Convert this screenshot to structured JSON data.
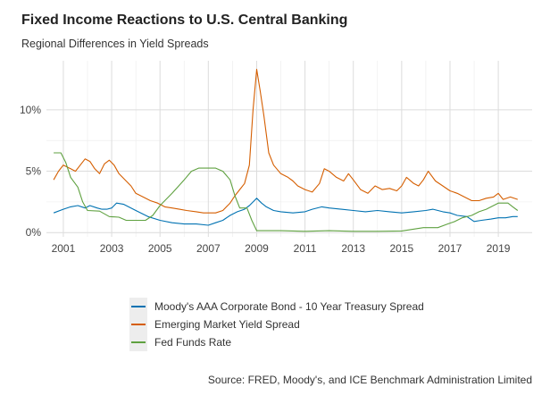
{
  "chart_data": {
    "type": "line",
    "title": "Fixed Income Reactions to U.S. Central Banking",
    "subtitle": "Regional Differences in Yield Spreads",
    "caption": "Source: FRED, Moody's, and ICE Benchmark Administration Limited",
    "xlabel": "",
    "ylabel": "",
    "xlim": [
      2000.3,
      2020.4
    ],
    "ylim": [
      -0.35,
      14.0
    ],
    "x_ticks": [
      2001,
      2003,
      2005,
      2007,
      2009,
      2011,
      2013,
      2015,
      2017,
      2019
    ],
    "y_ticks": [
      0,
      5,
      10
    ],
    "y_tick_labels": [
      "0%",
      "5%",
      "10%"
    ],
    "grid": true,
    "legend_position": "bottom",
    "series": [
      {
        "name": "Moody's AAA Corporate Bond - 10 Year Treasury Spread",
        "color": "#0072B2",
        "points": [
          [
            2000.6,
            1.6
          ],
          [
            2001.0,
            1.9
          ],
          [
            2001.3,
            2.1
          ],
          [
            2001.6,
            2.2
          ],
          [
            2001.9,
            2.0
          ],
          [
            2002.1,
            2.2
          ],
          [
            2002.4,
            2.0
          ],
          [
            2002.6,
            1.9
          ],
          [
            2002.8,
            1.9
          ],
          [
            2003.0,
            2.0
          ],
          [
            2003.2,
            2.4
          ],
          [
            2003.5,
            2.3
          ],
          [
            2003.8,
            2.0
          ],
          [
            2004.0,
            1.8
          ],
          [
            2004.5,
            1.3
          ],
          [
            2005.0,
            1.0
          ],
          [
            2005.5,
            0.8
          ],
          [
            2006.0,
            0.7
          ],
          [
            2006.5,
            0.7
          ],
          [
            2007.0,
            0.6
          ],
          [
            2007.3,
            0.8
          ],
          [
            2007.6,
            1.0
          ],
          [
            2007.9,
            1.4
          ],
          [
            2008.2,
            1.7
          ],
          [
            2008.5,
            1.9
          ],
          [
            2008.7,
            2.2
          ],
          [
            2008.9,
            2.6
          ],
          [
            2009.0,
            2.8
          ],
          [
            2009.2,
            2.4
          ],
          [
            2009.4,
            2.1
          ],
          [
            2009.7,
            1.8
          ],
          [
            2010.0,
            1.7
          ],
          [
            2010.5,
            1.6
          ],
          [
            2011.0,
            1.7
          ],
          [
            2011.3,
            1.9
          ],
          [
            2011.7,
            2.1
          ],
          [
            2012.0,
            2.0
          ],
          [
            2012.5,
            1.9
          ],
          [
            2013.0,
            1.8
          ],
          [
            2013.5,
            1.7
          ],
          [
            2014.0,
            1.8
          ],
          [
            2014.5,
            1.7
          ],
          [
            2015.0,
            1.6
          ],
          [
            2015.5,
            1.7
          ],
          [
            2016.0,
            1.8
          ],
          [
            2016.3,
            1.9
          ],
          [
            2016.7,
            1.7
          ],
          [
            2017.0,
            1.6
          ],
          [
            2017.3,
            1.4
          ],
          [
            2017.7,
            1.3
          ],
          [
            2018.0,
            0.9
          ],
          [
            2018.3,
            1.0
          ],
          [
            2018.7,
            1.1
          ],
          [
            2019.0,
            1.2
          ],
          [
            2019.3,
            1.2
          ],
          [
            2019.6,
            1.3
          ],
          [
            2019.8,
            1.3
          ]
        ]
      },
      {
        "name": "Emerging Market Yield Spread",
        "color": "#D55E00",
        "points": [
          [
            2000.6,
            4.3
          ],
          [
            2000.8,
            5.0
          ],
          [
            2001.0,
            5.5
          ],
          [
            2001.3,
            5.2
          ],
          [
            2001.5,
            5.0
          ],
          [
            2001.7,
            5.5
          ],
          [
            2001.9,
            6.0
          ],
          [
            2002.1,
            5.8
          ],
          [
            2002.3,
            5.2
          ],
          [
            2002.5,
            4.8
          ],
          [
            2002.7,
            5.6
          ],
          [
            2002.9,
            5.9
          ],
          [
            2003.1,
            5.5
          ],
          [
            2003.3,
            4.8
          ],
          [
            2003.6,
            4.2
          ],
          [
            2003.8,
            3.8
          ],
          [
            2004.0,
            3.2
          ],
          [
            2004.3,
            2.9
          ],
          [
            2004.6,
            2.6
          ],
          [
            2004.9,
            2.4
          ],
          [
            2005.2,
            2.1
          ],
          [
            2005.5,
            2.0
          ],
          [
            2005.8,
            1.9
          ],
          [
            2006.1,
            1.8
          ],
          [
            2006.5,
            1.7
          ],
          [
            2006.8,
            1.6
          ],
          [
            2007.0,
            1.6
          ],
          [
            2007.3,
            1.6
          ],
          [
            2007.6,
            1.8
          ],
          [
            2007.9,
            2.4
          ],
          [
            2008.1,
            3.0
          ],
          [
            2008.3,
            3.5
          ],
          [
            2008.5,
            4.0
          ],
          [
            2008.7,
            5.5
          ],
          [
            2008.85,
            10.0
          ],
          [
            2009.0,
            13.3
          ],
          [
            2009.15,
            11.5
          ],
          [
            2009.3,
            9.5
          ],
          [
            2009.5,
            6.5
          ],
          [
            2009.7,
            5.5
          ],
          [
            2010.0,
            4.8
          ],
          [
            2010.3,
            4.5
          ],
          [
            2010.5,
            4.2
          ],
          [
            2010.7,
            3.8
          ],
          [
            2011.0,
            3.5
          ],
          [
            2011.3,
            3.3
          ],
          [
            2011.6,
            4.0
          ],
          [
            2011.8,
            5.2
          ],
          [
            2012.0,
            5.0
          ],
          [
            2012.3,
            4.5
          ],
          [
            2012.6,
            4.2
          ],
          [
            2012.8,
            4.8
          ],
          [
            2013.0,
            4.3
          ],
          [
            2013.3,
            3.5
          ],
          [
            2013.6,
            3.2
          ],
          [
            2013.9,
            3.8
          ],
          [
            2014.2,
            3.5
          ],
          [
            2014.5,
            3.6
          ],
          [
            2014.8,
            3.4
          ],
          [
            2015.0,
            3.8
          ],
          [
            2015.2,
            4.5
          ],
          [
            2015.5,
            4.0
          ],
          [
            2015.7,
            3.8
          ],
          [
            2015.9,
            4.3
          ],
          [
            2016.1,
            5.0
          ],
          [
            2016.4,
            4.2
          ],
          [
            2016.7,
            3.8
          ],
          [
            2017.0,
            3.4
          ],
          [
            2017.3,
            3.2
          ],
          [
            2017.6,
            2.9
          ],
          [
            2017.9,
            2.6
          ],
          [
            2018.2,
            2.6
          ],
          [
            2018.5,
            2.8
          ],
          [
            2018.8,
            2.9
          ],
          [
            2019.0,
            3.2
          ],
          [
            2019.2,
            2.7
          ],
          [
            2019.5,
            2.9
          ],
          [
            2019.8,
            2.7
          ]
        ]
      },
      {
        "name": "Fed Funds Rate",
        "color": "#5FA140",
        "points": [
          [
            2000.6,
            6.5
          ],
          [
            2000.9,
            6.5
          ],
          [
            2001.1,
            5.7
          ],
          [
            2001.3,
            4.5
          ],
          [
            2001.6,
            3.7
          ],
          [
            2001.8,
            2.5
          ],
          [
            2002.0,
            1.8
          ],
          [
            2002.5,
            1.75
          ],
          [
            2002.9,
            1.3
          ],
          [
            2003.3,
            1.25
          ],
          [
            2003.6,
            1.0
          ],
          [
            2004.0,
            1.0
          ],
          [
            2004.4,
            1.0
          ],
          [
            2004.7,
            1.4
          ],
          [
            2005.0,
            2.2
          ],
          [
            2005.5,
            3.2
          ],
          [
            2006.0,
            4.3
          ],
          [
            2006.3,
            5.0
          ],
          [
            2006.6,
            5.25
          ],
          [
            2007.0,
            5.25
          ],
          [
            2007.3,
            5.25
          ],
          [
            2007.6,
            5.0
          ],
          [
            2007.9,
            4.3
          ],
          [
            2008.1,
            3.0
          ],
          [
            2008.3,
            2.0
          ],
          [
            2008.6,
            2.0
          ],
          [
            2008.8,
            1.0
          ],
          [
            2009.0,
            0.15
          ],
          [
            2010.0,
            0.15
          ],
          [
            2011.0,
            0.1
          ],
          [
            2012.0,
            0.15
          ],
          [
            2013.0,
            0.1
          ],
          [
            2014.0,
            0.1
          ],
          [
            2015.0,
            0.13
          ],
          [
            2015.9,
            0.4
          ],
          [
            2016.5,
            0.4
          ],
          [
            2016.9,
            0.7
          ],
          [
            2017.2,
            0.9
          ],
          [
            2017.5,
            1.2
          ],
          [
            2017.9,
            1.4
          ],
          [
            2018.2,
            1.7
          ],
          [
            2018.5,
            1.9
          ],
          [
            2018.8,
            2.2
          ],
          [
            2019.0,
            2.4
          ],
          [
            2019.4,
            2.4
          ],
          [
            2019.6,
            2.1
          ],
          [
            2019.8,
            1.8
          ]
        ]
      }
    ]
  }
}
